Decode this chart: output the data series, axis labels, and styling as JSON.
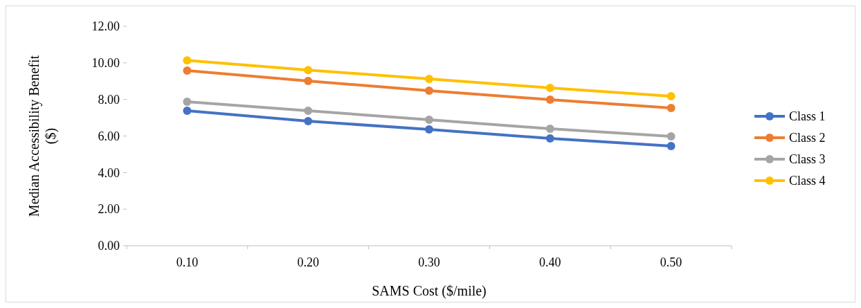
{
  "chart_data": {
    "type": "line",
    "xlabel": "SAMS Cost ($/mile)",
    "ylabel": "Median Accessibility Benefit ($)",
    "categories": [
      "0.10",
      "0.20",
      "0.30",
      "0.40",
      "0.50"
    ],
    "series": [
      {
        "name": "Class 1",
        "color": "#4472c4",
        "values": [
          7.38,
          6.81,
          6.36,
          5.87,
          5.45
        ]
      },
      {
        "name": "Class 2",
        "color": "#ed7d31",
        "values": [
          9.58,
          9.01,
          8.48,
          7.99,
          7.53
        ]
      },
      {
        "name": "Class 3",
        "color": "#a5a5a5",
        "values": [
          7.87,
          7.38,
          6.89,
          6.4,
          5.98
        ]
      },
      {
        "name": "Class 4",
        "color": "#ffc000",
        "values": [
          10.14,
          9.61,
          9.12,
          8.63,
          8.18
        ]
      }
    ],
    "ylim": [
      0,
      12
    ],
    "yticks": [
      {
        "value": 0,
        "label": "0.00"
      },
      {
        "value": 2,
        "label": "2.00"
      },
      {
        "value": 4,
        "label": "4.00"
      },
      {
        "value": 6,
        "label": "6.00"
      },
      {
        "value": 8,
        "label": "8.00"
      },
      {
        "value": 10,
        "label": "10.00"
      },
      {
        "value": 12,
        "label": "12.00"
      }
    ],
    "grid": false,
    "legend": "right",
    "marker": "circle",
    "line_style": "solid"
  }
}
